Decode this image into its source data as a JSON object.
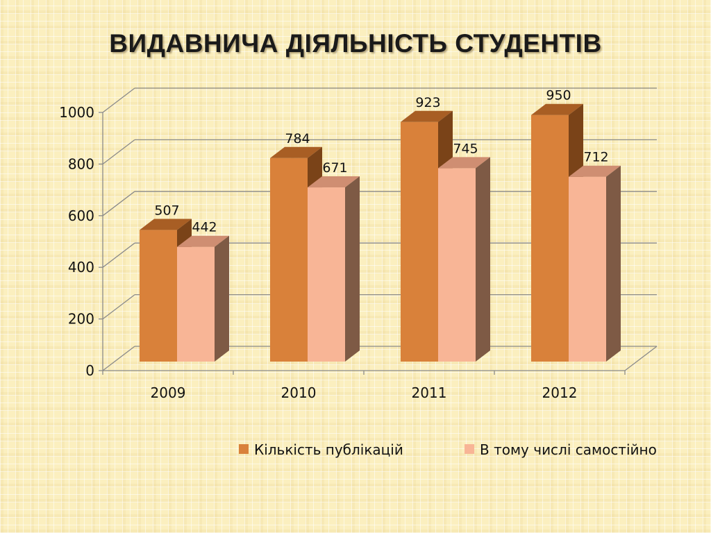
{
  "slide": {
    "title": "ВИДАВНИЧА ДІЯЛЬНІСТЬ СТУДЕНТІВ"
  },
  "chart_data": {
    "type": "bar",
    "style": "3d-clustered-column",
    "title": "ВИДАВНИЧА ДІЯЛЬНІСТЬ СТУДЕНТІВ",
    "categories": [
      "2009",
      "2010",
      "2011",
      "2012"
    ],
    "series": [
      {
        "name": "Кількість публікацій",
        "values": [
          507,
          784,
          923,
          950
        ],
        "color": "#d9813a"
      },
      {
        "name": "В тому числі самостійно",
        "values": [
          442,
          671,
          745,
          712
        ],
        "color": "#f8b596"
      }
    ],
    "ylim": [
      0,
      1000
    ],
    "yticks": [
      0,
      200,
      400,
      600,
      800,
      1000
    ],
    "grid": true,
    "data_labels": true,
    "legend_position": "bottom"
  }
}
